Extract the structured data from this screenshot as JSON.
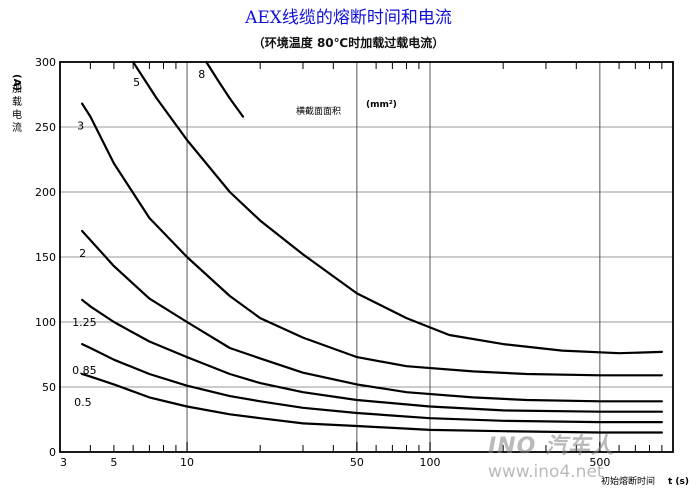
{
  "chart_data": {
    "type": "line",
    "title": "AEX线缆的熔断时间和电流",
    "subtitle": "（环境温度 80℃时加载过载电流）",
    "ylabel_unit": "(A)",
    "ylabel": "加载电流",
    "xlabel": "初始熔断时间",
    "xlabel_unit": "t (s)",
    "x_scale": "log",
    "xlim": [
      3,
      1000
    ],
    "ylim": [
      0,
      300
    ],
    "x_ticks": [
      3,
      5,
      10,
      50,
      100,
      500
    ],
    "x_tick_labels": [
      "3",
      "5",
      "10",
      "50",
      "100",
      "500"
    ],
    "y_ticks": [
      0,
      50,
      100,
      150,
      200,
      250,
      300
    ],
    "y_tick_labels": [
      "0",
      "50",
      "100",
      "150",
      "200",
      "250",
      "300"
    ],
    "grid": true,
    "annotation": "横截面面积",
    "annotation_unit": "(mm²)",
    "series": [
      {
        "name": "8",
        "x": [
          12.0,
          13.5,
          15.0,
          17.0
        ],
        "y": [
          300,
          285,
          272,
          258
        ]
      },
      {
        "name": "5",
        "x": [
          6.0,
          7.5,
          10.0,
          15.0,
          20.0,
          30.0,
          50.0,
          80.0,
          120.0,
          200.0,
          350.0,
          600.0,
          900.0
        ],
        "y": [
          300,
          272,
          240,
          200,
          178,
          152,
          122,
          103,
          90,
          83,
          78,
          76,
          77
        ]
      },
      {
        "name": "3",
        "x": [
          3.7,
          4.0,
          5.0,
          7.0,
          10.0,
          15.0,
          20.0,
          30.0,
          50.0,
          80.0,
          150.0,
          250.0,
          500.0,
          900.0
        ],
        "y": [
          268,
          258,
          222,
          180,
          150,
          120,
          103,
          88,
          73,
          66,
          62,
          60,
          59,
          59
        ]
      },
      {
        "name": "2",
        "x": [
          3.7,
          4.0,
          5.0,
          7.0,
          10.0,
          15.0,
          20.0,
          30.0,
          50.0,
          80.0,
          150.0,
          250.0,
          500.0,
          900.0
        ],
        "y": [
          170,
          163,
          143,
          118,
          100,
          80,
          72,
          61,
          52,
          46,
          42,
          40,
          39,
          39
        ]
      },
      {
        "name": "1.25",
        "x": [
          3.7,
          4.0,
          5.0,
          7.0,
          10.0,
          15.0,
          20.0,
          30.0,
          50.0,
          100.0,
          200.0,
          500.0,
          900.0
        ],
        "y": [
          117,
          112,
          100,
          85,
          73,
          60,
          53,
          46,
          40,
          35,
          32,
          31,
          31
        ]
      },
      {
        "name": "0.85",
        "x": [
          3.7,
          4.0,
          5.0,
          7.0,
          10.0,
          15.0,
          20.0,
          30.0,
          50.0,
          100.0,
          200.0,
          500.0,
          900.0
        ],
        "y": [
          83,
          80,
          71,
          60,
          51,
          43,
          39,
          34,
          30,
          26,
          24,
          23,
          23
        ]
      },
      {
        "name": "0.5",
        "x": [
          3.7,
          4.0,
          5.0,
          7.0,
          10.0,
          15.0,
          20.0,
          30.0,
          50.0,
          100.0,
          200.0,
          500.0,
          900.0
        ],
        "y": [
          60,
          58,
          52,
          42,
          35,
          29,
          26,
          22,
          20,
          17,
          16,
          15,
          15
        ]
      }
    ]
  },
  "watermark": {
    "brand": "INO 汽车人",
    "url": "www.ino4.net"
  }
}
